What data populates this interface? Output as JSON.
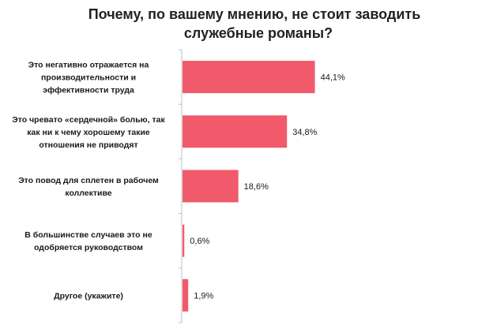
{
  "chart_data": {
    "type": "bar",
    "orientation": "horizontal",
    "title_lines": [
      "Почему, по вашему мнению, не стоит заводить",
      "служебные романы?"
    ],
    "categories": [
      [
        "Это негативно отражается на",
        "производительности  и",
        "эффективности труда"
      ],
      [
        "Это чревато «сердечной» болью, так",
        "как  ни к чему хорошему такие",
        "отношения  не приводят"
      ],
      [
        "Это повод для сплетен в рабочем",
        "коллективе"
      ],
      [
        "В большинстве  случаев  это не",
        "одобряется  руководством"
      ],
      [
        "Другое (укажите)"
      ]
    ],
    "values": [
      44.1,
      34.8,
      18.6,
      0.6,
      1.9
    ],
    "value_labels": [
      "44,1%",
      "34,8%",
      "18,6%",
      "0,6%",
      "1,9%"
    ],
    "xlim": [
      0,
      100
    ],
    "bar_color": "#f05a6a",
    "axis_color": "#bfbfbf",
    "grid": false,
    "legend": "none"
  }
}
